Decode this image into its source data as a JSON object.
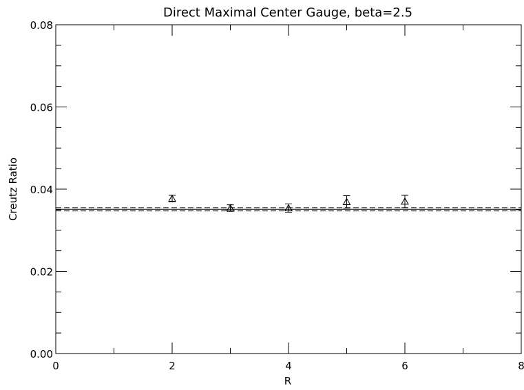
{
  "chart_data": {
    "type": "scatter",
    "title": "Direct Maximal Center Gauge, beta=2.5",
    "xlabel": "R",
    "ylabel": "Creutz Ratio",
    "xlim": [
      0,
      8
    ],
    "ylim": [
      0.0,
      0.08
    ],
    "x_ticks": [
      "0",
      "2",
      "4",
      "6",
      "8"
    ],
    "y_ticks": [
      "0.00",
      "0.02",
      "0.04",
      "0.06",
      "0.08"
    ],
    "grid": false,
    "marker": "triangle",
    "points": [
      {
        "x": 2,
        "y": 0.0377,
        "err": 0.0008
      },
      {
        "x": 3,
        "y": 0.0354,
        "err": 0.0008
      },
      {
        "x": 4,
        "y": 0.0354,
        "err": 0.001
      },
      {
        "x": 5,
        "y": 0.0369,
        "err": 0.0015
      },
      {
        "x": 6,
        "y": 0.037,
        "err": 0.0015
      }
    ],
    "reference_lines": [
      {
        "style": "solid",
        "y": 0.0351
      },
      {
        "style": "dashed",
        "y": 0.0355
      },
      {
        "style": "dashed",
        "y": 0.0347
      }
    ]
  }
}
